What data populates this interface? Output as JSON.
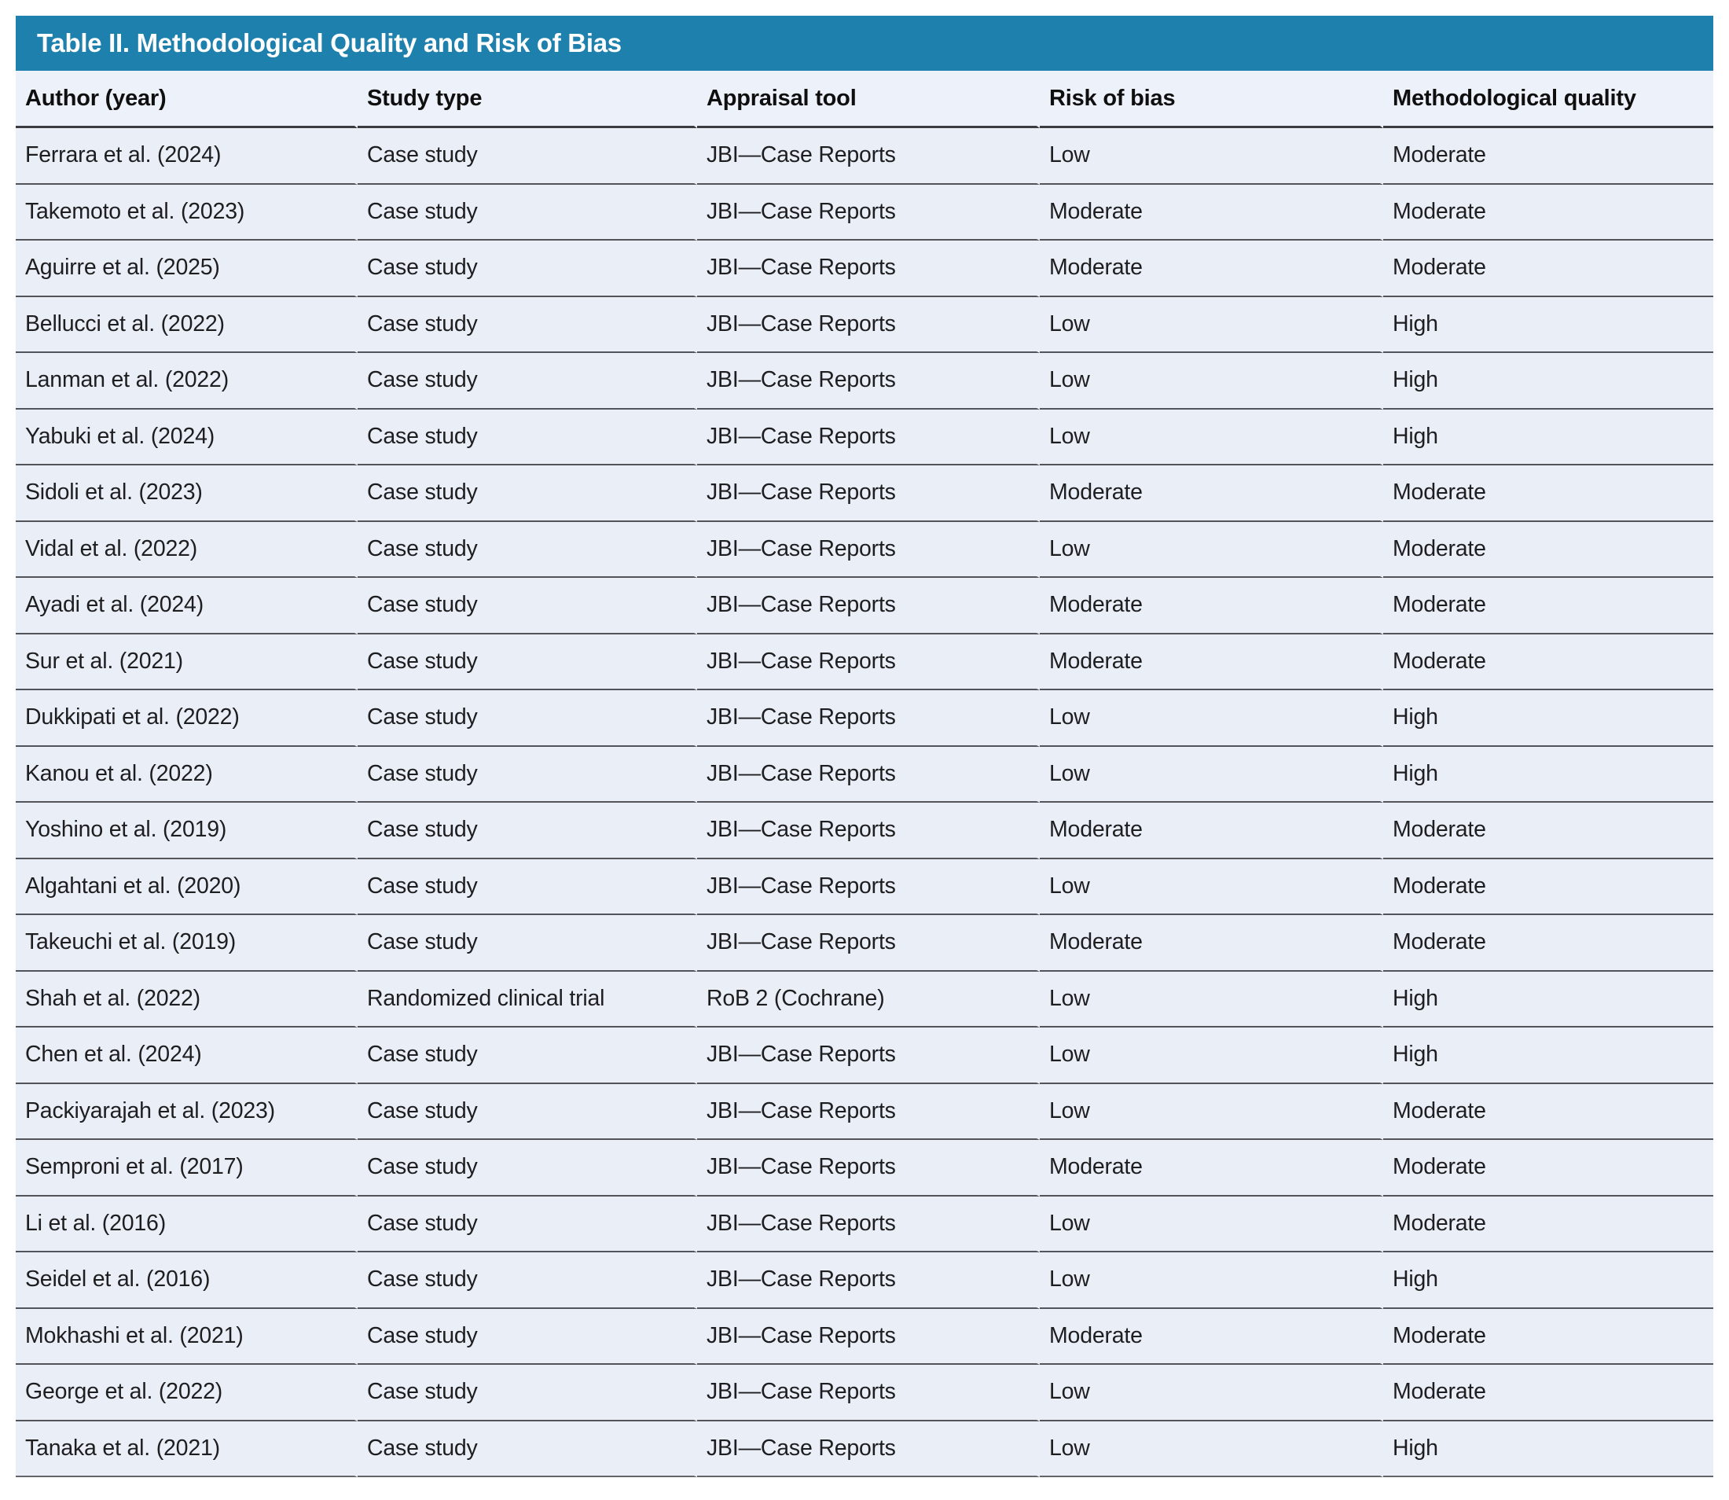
{
  "colors": {
    "title_bar": "#1e80ac",
    "header_bg": "#edf1f9",
    "row_bg": "#e9eef7",
    "row_rule": "#53545a",
    "header_rule": "#3b3c40",
    "bottom_rule": "#63656b",
    "text": "#1e1e20",
    "header_text": "#0f0f10",
    "title_text": "#ffffff"
  },
  "table": {
    "title": "Table II. Methodological Quality and Risk of Bias",
    "columns": [
      "Author (year)",
      "Study type",
      "Appraisal tool",
      "Risk of bias",
      "Methodological quality"
    ],
    "rows": [
      {
        "author": "Ferrara et al. (2024)",
        "study_type": "Case study",
        "appraisal_tool": "JBI—Case Reports",
        "risk_of_bias": "Low",
        "methodological_quality": "Moderate"
      },
      {
        "author": "Takemoto et al. (2023)",
        "study_type": "Case study",
        "appraisal_tool": "JBI—Case Reports",
        "risk_of_bias": "Moderate",
        "methodological_quality": "Moderate"
      },
      {
        "author": "Aguirre et al. (2025)",
        "study_type": "Case study",
        "appraisal_tool": "JBI—Case Reports",
        "risk_of_bias": "Moderate",
        "methodological_quality": "Moderate"
      },
      {
        "author": "Bellucci et al. (2022)",
        "study_type": "Case study",
        "appraisal_tool": "JBI—Case Reports",
        "risk_of_bias": "Low",
        "methodological_quality": "High"
      },
      {
        "author": "Lanman et al. (2022)",
        "study_type": "Case study",
        "appraisal_tool": "JBI—Case Reports",
        "risk_of_bias": "Low",
        "methodological_quality": "High"
      },
      {
        "author": "Yabuki et al. (2024)",
        "study_type": "Case study",
        "appraisal_tool": "JBI—Case Reports",
        "risk_of_bias": "Low",
        "methodological_quality": "High"
      },
      {
        "author": "Sidoli et al. (2023)",
        "study_type": "Case study",
        "appraisal_tool": "JBI—Case Reports",
        "risk_of_bias": "Moderate",
        "methodological_quality": "Moderate"
      },
      {
        "author": "Vidal et al. (2022)",
        "study_type": "Case study",
        "appraisal_tool": "JBI—Case Reports",
        "risk_of_bias": "Low",
        "methodological_quality": "Moderate"
      },
      {
        "author": "Ayadi et al. (2024)",
        "study_type": "Case study",
        "appraisal_tool": "JBI—Case Reports",
        "risk_of_bias": "Moderate",
        "methodological_quality": "Moderate"
      },
      {
        "author": "Sur et al. (2021)",
        "study_type": "Case study",
        "appraisal_tool": "JBI—Case Reports",
        "risk_of_bias": "Moderate",
        "methodological_quality": "Moderate"
      },
      {
        "author": "Dukkipati et al. (2022)",
        "study_type": "Case study",
        "appraisal_tool": "JBI—Case Reports",
        "risk_of_bias": "Low",
        "methodological_quality": "High"
      },
      {
        "author": "Kanou et al. (2022)",
        "study_type": "Case study",
        "appraisal_tool": "JBI—Case Reports",
        "risk_of_bias": "Low",
        "methodological_quality": "High"
      },
      {
        "author": "Yoshino et al. (2019)",
        "study_type": "Case study",
        "appraisal_tool": "JBI—Case Reports",
        "risk_of_bias": "Moderate",
        "methodological_quality": "Moderate"
      },
      {
        "author": "Algahtani et al. (2020)",
        "study_type": "Case study",
        "appraisal_tool": "JBI—Case Reports",
        "risk_of_bias": "Low",
        "methodological_quality": "Moderate"
      },
      {
        "author": "Takeuchi et al. (2019)",
        "study_type": "Case study",
        "appraisal_tool": "JBI—Case Reports",
        "risk_of_bias": "Moderate",
        "methodological_quality": "Moderate"
      },
      {
        "author": "Shah et al. (2022)",
        "study_type": "Randomized clinical trial",
        "appraisal_tool": "RoB 2 (Cochrane)",
        "risk_of_bias": "Low",
        "methodological_quality": "High"
      },
      {
        "author": "Chen et al. (2024)",
        "study_type": "Case study",
        "appraisal_tool": "JBI—Case Reports",
        "risk_of_bias": "Low",
        "methodological_quality": "High"
      },
      {
        "author": "Packiyarajah et al. (2023)",
        "study_type": "Case study",
        "appraisal_tool": "JBI—Case Reports",
        "risk_of_bias": "Low",
        "methodological_quality": "Moderate"
      },
      {
        "author": "Semproni et al. (2017)",
        "study_type": "Case study",
        "appraisal_tool": "JBI—Case Reports",
        "risk_of_bias": "Moderate",
        "methodological_quality": "Moderate"
      },
      {
        "author": "Li et al. (2016)",
        "study_type": "Case study",
        "appraisal_tool": "JBI—Case Reports",
        "risk_of_bias": "Low",
        "methodological_quality": "Moderate"
      },
      {
        "author": "Seidel et al. (2016)",
        "study_type": "Case study",
        "appraisal_tool": "JBI—Case Reports",
        "risk_of_bias": "Low",
        "methodological_quality": "High"
      },
      {
        "author": "Mokhashi et al. (2021)",
        "study_type": "Case study",
        "appraisal_tool": "JBI—Case Reports",
        "risk_of_bias": "Moderate",
        "methodological_quality": "Moderate"
      },
      {
        "author": "George et al. (2022)",
        "study_type": "Case study",
        "appraisal_tool": "JBI—Case Reports",
        "risk_of_bias": "Low",
        "methodological_quality": "Moderate"
      },
      {
        "author": "Tanaka et al. (2021)",
        "study_type": "Case study",
        "appraisal_tool": "JBI—Case Reports",
        "risk_of_bias": "Low",
        "methodological_quality": "High"
      }
    ]
  }
}
